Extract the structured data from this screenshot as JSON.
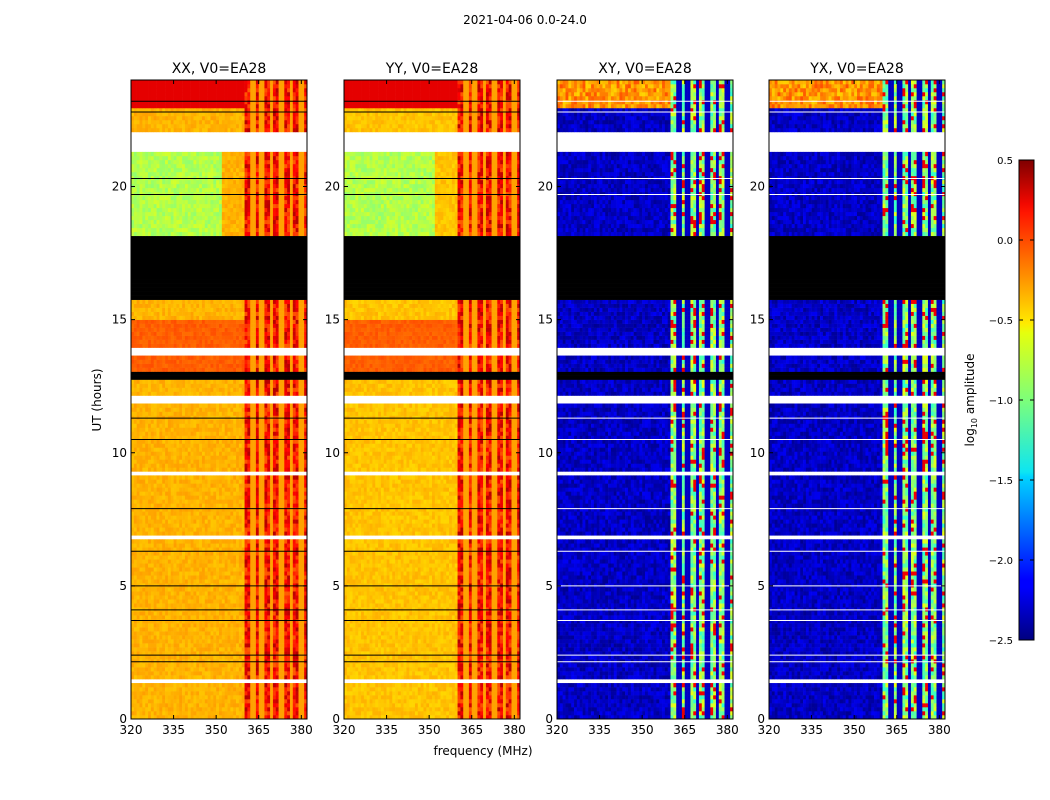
{
  "chart_data": {
    "type": "heatmap",
    "suptitle": "2021-04-06 0.0-24.0",
    "xlabel": "frequency (MHz)",
    "ylabel": "UT (hours)",
    "xlim": [
      320,
      382
    ],
    "ylim": [
      0,
      24
    ],
    "xticks": [
      320,
      335,
      350,
      365,
      380
    ],
    "yticks": [
      0,
      5,
      10,
      15,
      20
    ],
    "colorbar": {
      "label": "log10 amplitude",
      "label_base": "log",
      "label_sub": "10",
      "label_rest": " amplitude",
      "vmin": -2.5,
      "vmax": 0.5,
      "ticks": [
        0.5,
        0.0,
        -0.5,
        -1.0,
        -1.5,
        -2.0,
        -2.5
      ],
      "tick_labels": [
        "0.5",
        "0.0",
        "−0.5",
        "−1.0",
        "−1.5",
        "−2.0",
        "−2.5"
      ],
      "colormap": "jet"
    },
    "rfi_band_mhz": [
      360,
      381
    ],
    "blank_ut_ranges": [
      [
        1.3,
        1.45
      ],
      [
        6.7,
        6.95
      ],
      [
        9.15,
        9.35
      ],
      [
        11.9,
        12.2
      ],
      [
        13.65,
        14.0
      ],
      [
        21.3,
        22.1
      ]
    ],
    "flagged_ut_ranges": [
      [
        12.8,
        13.05
      ],
      [
        15.8,
        18.2
      ]
    ],
    "panels": [
      {
        "title": "XX, V0=EA28",
        "typical": -0.4,
        "rfi": 0.1
      },
      {
        "title": "YY, V0=EA28",
        "typical": -0.45,
        "rfi": 0.1
      },
      {
        "title": "XY, V0=EA28",
        "typical": -2.3,
        "rfi": -0.9
      },
      {
        "title": "YX, V0=EA28",
        "typical": -2.3,
        "rfi": -0.9
      }
    ]
  }
}
